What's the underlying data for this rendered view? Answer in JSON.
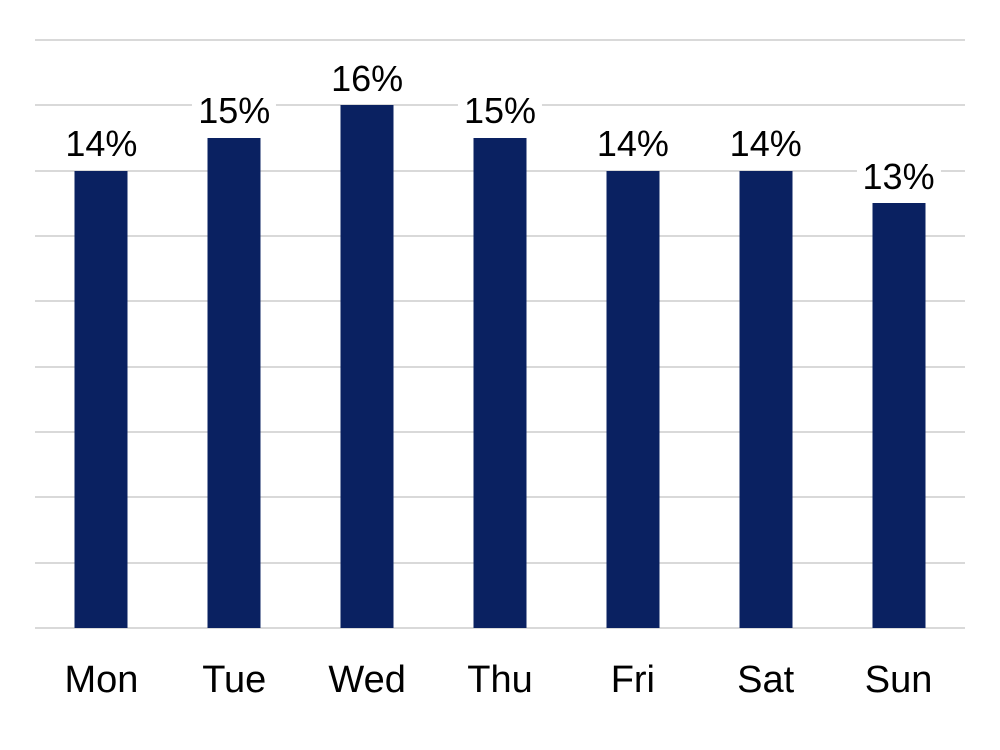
{
  "chart_data": {
    "type": "bar",
    "title": "",
    "xlabel": "",
    "ylabel": "",
    "categories": [
      "Mon",
      "Tue",
      "Wed",
      "Thu",
      "Fri",
      "Sat",
      "Sun"
    ],
    "values": [
      14,
      15,
      16,
      15,
      14,
      14,
      13
    ],
    "data_labels": [
      "14%",
      "15%",
      "16%",
      "15%",
      "14%",
      "14%",
      "13%"
    ],
    "value_suffix": "%",
    "ylim": [
      0,
      18
    ],
    "gridline_step": 2,
    "grid": "horizontal gridlines on, no visible value axis labels",
    "legend_position": "none",
    "colors": {
      "bar": "#0A2161",
      "gridline": "#D9D9D9",
      "label_text": "#000000",
      "background": "#FFFFFF",
      "data_label_background": "#FFFFFF"
    }
  }
}
